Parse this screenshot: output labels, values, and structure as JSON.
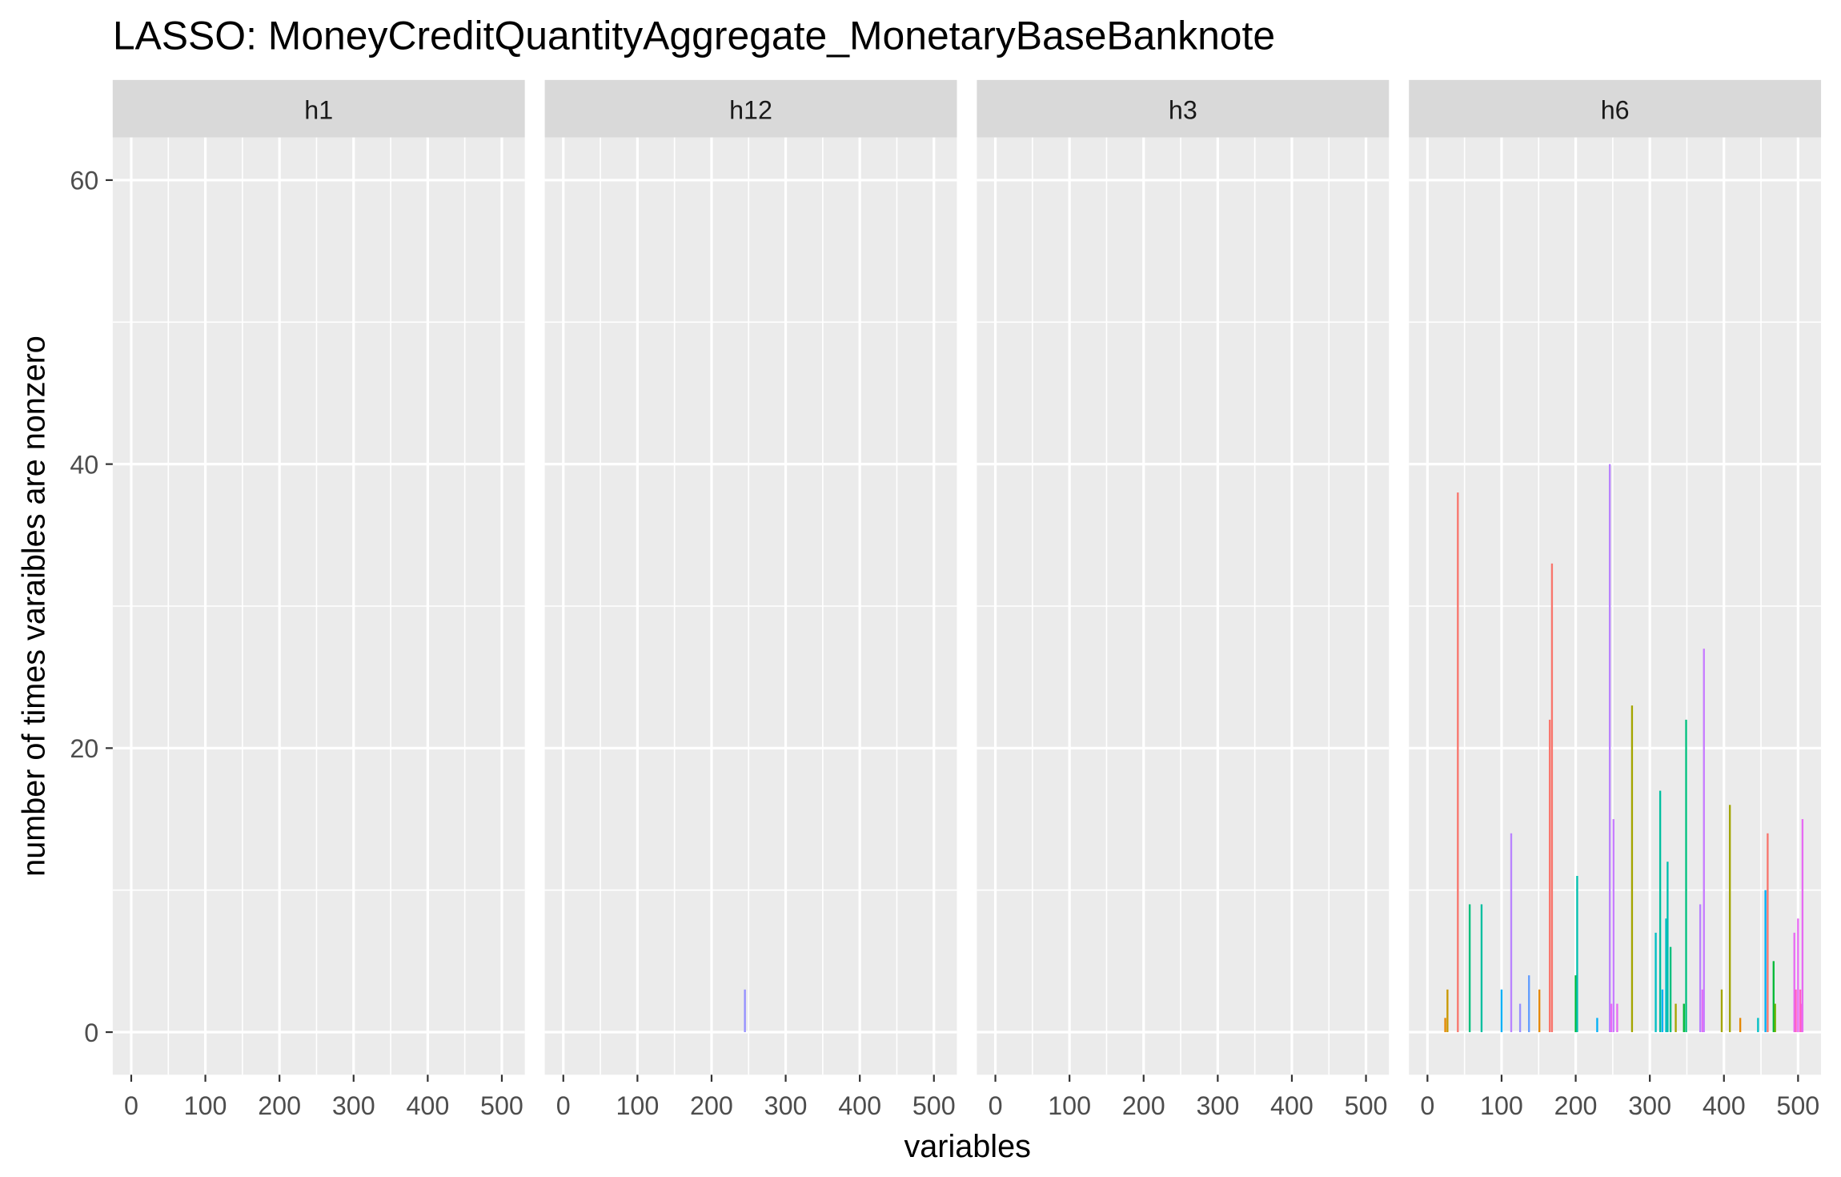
{
  "chart_data": {
    "type": "bar",
    "title": "LASSO: MoneyCreditQuantityAggregate_MonetaryBaseBanknote",
    "xlabel": "variables",
    "ylabel": "number of times varaibles are nonzero",
    "xlim": [
      -25,
      531
    ],
    "xticks": [
      0,
      100,
      200,
      300,
      400,
      500
    ],
    "ylim": [
      -3,
      63
    ],
    "yticks": [
      0,
      20,
      40,
      60
    ],
    "grid": true,
    "facets": [
      {
        "label": "h1",
        "x": [],
        "values": [],
        "colors": []
      },
      {
        "label": "h12",
        "x": [
          245
        ],
        "values": [
          3
        ],
        "colors": [
          "#9590FF"
        ]
      },
      {
        "label": "h3",
        "x": [],
        "values": [],
        "colors": []
      },
      {
        "label": "h6",
        "x": [
          24,
          27,
          41,
          57,
          73,
          100,
          113,
          125,
          137,
          151,
          165,
          168,
          200,
          202,
          229,
          246,
          248,
          251,
          256,
          276,
          308,
          314,
          317,
          322,
          324,
          328,
          335,
          346,
          349,
          368,
          371,
          373,
          397,
          408,
          422,
          446,
          456,
          459,
          467,
          469,
          495,
          497,
          500,
          503,
          505,
          506
        ],
        "values": [
          1,
          3,
          38,
          9,
          9,
          3,
          14,
          2,
          4,
          3,
          22,
          33,
          4,
          11,
          1,
          40,
          2,
          15,
          2,
          23,
          7,
          17,
          3,
          8,
          12,
          6,
          2,
          2,
          22,
          9,
          3,
          27,
          3,
          16,
          1,
          1,
          10,
          14,
          5,
          2,
          7,
          3,
          8,
          3,
          2,
          15
        ],
        "colors": [
          "#E58700",
          "#C99800",
          "#F8766D",
          "#00BF7D",
          "#00BFA0",
          "#00B0F6",
          "#B983FF",
          "#9590FF",
          "#619CFF",
          "#E58700",
          "#F8766D",
          "#F8766D",
          "#00BA38",
          "#00C0AF",
          "#00B0F6",
          "#B983FF",
          "#E76BF3",
          "#C77CFF",
          "#E76BF3",
          "#A3A500",
          "#00BFC4",
          "#00BFA0",
          "#00B0F6",
          "#00BFC4",
          "#00C0AF",
          "#00BF7D",
          "#A3A500",
          "#00BA38",
          "#00BF7D",
          "#B983FF",
          "#E76BF3",
          "#C77CFF",
          "#A3A500",
          "#A3A500",
          "#E58700",
          "#00BFC4",
          "#00B0F6",
          "#F8766D",
          "#00BA38",
          "#6BB100",
          "#E76BF3",
          "#FF61C3",
          "#E76BF3",
          "#FF61C3",
          "#FD61D1",
          "#E76BF3"
        ]
      }
    ]
  }
}
